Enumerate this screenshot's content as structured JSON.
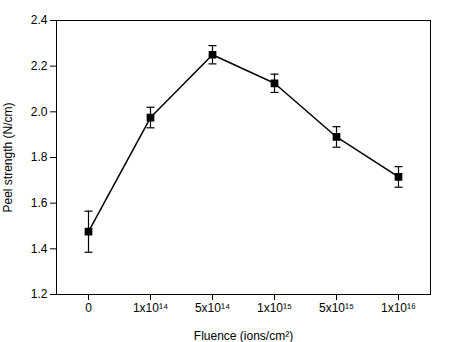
{
  "chart_data": {
    "type": "line",
    "categories": [
      "0",
      "1x10¹⁴",
      "5x10¹⁴",
      "1x10¹⁵",
      "5x10¹⁵",
      "1x10¹⁶"
    ],
    "values": [
      1.475,
      1.975,
      2.25,
      2.125,
      1.89,
      1.715
    ],
    "errors": [
      0.09,
      0.045,
      0.04,
      0.04,
      0.045,
      0.045
    ],
    "color": "#000000",
    "marker": "square",
    "line_style": "solid",
    "xlabel": "Fluence (ions/cm²)",
    "ylabel": "Peel strength (N/cm)",
    "ylim": [
      1.2,
      2.4
    ],
    "yticks": [
      1.2,
      1.4,
      1.6,
      1.8,
      {
        "value": 2.0,
        "label": "2.0"
      },
      2.2,
      2.4
    ],
    "grid": false
  }
}
